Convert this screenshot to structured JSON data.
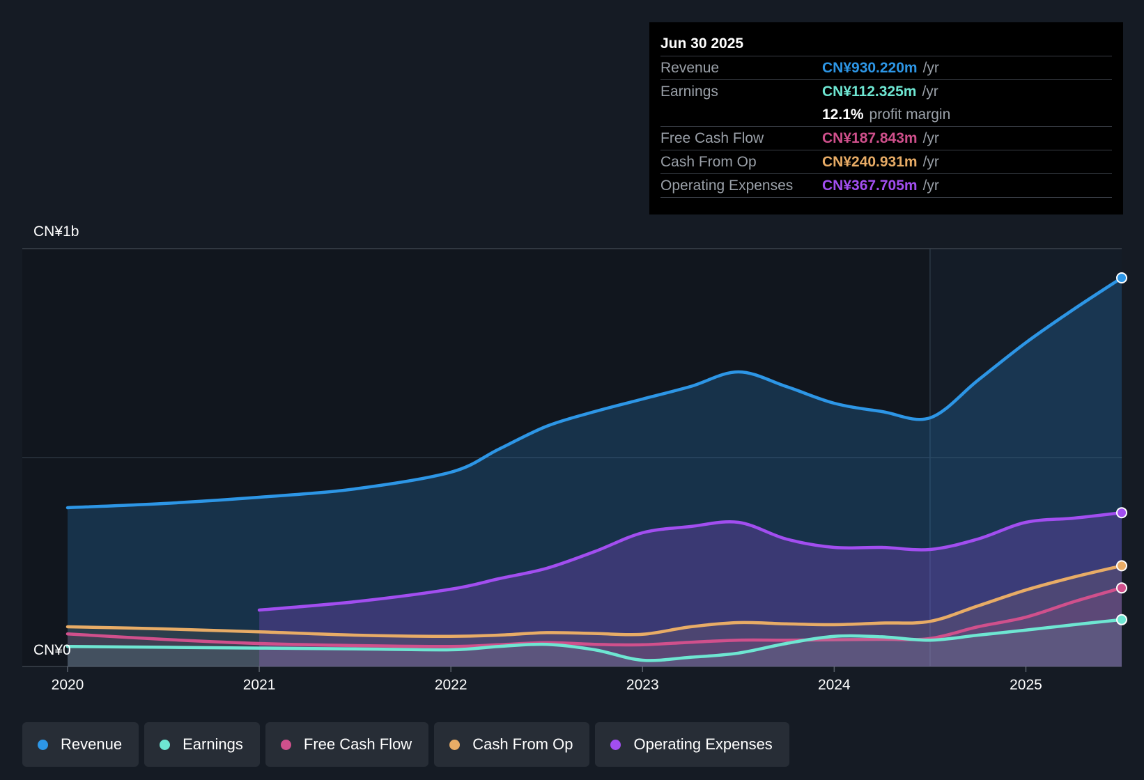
{
  "tooltip": {
    "date": "Jun 30 2025",
    "rows": [
      {
        "label": "Revenue",
        "value": "CN¥930.220m",
        "unit": "/yr",
        "color": "#2d96e6"
      },
      {
        "label": "Earnings",
        "value": "CN¥112.325m",
        "unit": "/yr",
        "color": "#6ee6d2"
      },
      {
        "label": "",
        "value": "12.1%",
        "unit": "profit margin",
        "color": "#ffffff"
      },
      {
        "label": "Free Cash Flow",
        "value": "CN¥187.843m",
        "unit": "/yr",
        "color": "#d0508c"
      },
      {
        "label": "Cash From Op",
        "value": "CN¥240.931m",
        "unit": "/yr",
        "color": "#e8ac66"
      },
      {
        "label": "Operating Expenses",
        "value": "CN¥367.705m",
        "unit": "/yr",
        "color": "#a24ef0"
      }
    ]
  },
  "legend": [
    {
      "label": "Revenue",
      "color": "#2d96e6"
    },
    {
      "label": "Earnings",
      "color": "#6ee6d2"
    },
    {
      "label": "Free Cash Flow",
      "color": "#d0508c"
    },
    {
      "label": "Cash From Op",
      "color": "#e8ac66"
    },
    {
      "label": "Operating Expenses",
      "color": "#a24ef0"
    }
  ],
  "chart_data": {
    "type": "area",
    "y_axis_labels": {
      "top": "CN¥1b",
      "bottom": "CN¥0"
    },
    "ylim": [
      0,
      1000
    ],
    "xlim": [
      2020.0,
      2025.5
    ],
    "x_ticks": [
      2020,
      2021,
      2022,
      2023,
      2024,
      2025
    ],
    "x_tick_labels": [
      "2020",
      "2021",
      "2022",
      "2023",
      "2024",
      "2025"
    ],
    "past_future_split_x": 2024.5,
    "grid": "horizontal",
    "series": [
      {
        "name": "Revenue",
        "color": "#2d96e6",
        "fill": true,
        "x": [
          2020.0,
          2020.5,
          2021.0,
          2021.5,
          2022.0,
          2022.25,
          2022.5,
          2022.75,
          2023.0,
          2023.25,
          2023.5,
          2023.75,
          2024.0,
          2024.25,
          2024.5,
          2024.75,
          2025.0,
          2025.25,
          2025.5
        ],
        "y": [
          380,
          390,
          405,
          425,
          465,
          520,
          575,
          610,
          640,
          670,
          705,
          670,
          630,
          610,
          595,
          685,
          775,
          855,
          930
        ]
      },
      {
        "name": "Operating Expenses",
        "color": "#a24ef0",
        "fill": true,
        "x": [
          2021.0,
          2021.5,
          2022.0,
          2022.25,
          2022.5,
          2022.75,
          2023.0,
          2023.25,
          2023.5,
          2023.75,
          2024.0,
          2024.25,
          2024.5,
          2024.75,
          2025.0,
          2025.25,
          2025.5
        ],
        "y": [
          135,
          155,
          185,
          210,
          235,
          275,
          320,
          335,
          345,
          305,
          285,
          285,
          280,
          305,
          345,
          355,
          368
        ]
      },
      {
        "name": "Cash From Op",
        "color": "#e8ac66",
        "fill": true,
        "x": [
          2020.0,
          2020.5,
          2021.0,
          2021.5,
          2022.0,
          2022.25,
          2022.5,
          2022.75,
          2023.0,
          2023.25,
          2023.5,
          2023.75,
          2024.0,
          2024.25,
          2024.5,
          2024.75,
          2025.0,
          2025.25,
          2025.5
        ],
        "y": [
          95,
          90,
          83,
          75,
          72,
          75,
          81,
          79,
          77,
          95,
          105,
          102,
          100,
          104,
          108,
          145,
          183,
          214,
          241
        ]
      },
      {
        "name": "Free Cash Flow",
        "color": "#d0508c",
        "fill": true,
        "x": [
          2020.0,
          2020.5,
          2021.0,
          2021.5,
          2022.0,
          2022.25,
          2022.5,
          2022.75,
          2023.0,
          2023.25,
          2023.5,
          2023.75,
          2024.0,
          2024.25,
          2024.5,
          2024.75,
          2025.0,
          2025.25,
          2025.5
        ],
        "y": [
          78,
          65,
          55,
          50,
          48,
          52,
          57,
          53,
          52,
          58,
          63,
          63,
          64,
          65,
          67,
          95,
          118,
          155,
          188
        ]
      },
      {
        "name": "Earnings",
        "color": "#6ee6d2",
        "fill": true,
        "x": [
          2020.0,
          2020.5,
          2021.0,
          2021.5,
          2022.0,
          2022.25,
          2022.5,
          2022.75,
          2023.0,
          2023.25,
          2023.5,
          2023.75,
          2024.0,
          2024.25,
          2024.5,
          2024.75,
          2025.0,
          2025.25,
          2025.5
        ],
        "y": [
          48,
          46,
          44,
          42,
          40,
          48,
          53,
          40,
          15,
          22,
          32,
          55,
          72,
          71,
          63,
          75,
          87,
          100,
          112
        ]
      }
    ]
  }
}
